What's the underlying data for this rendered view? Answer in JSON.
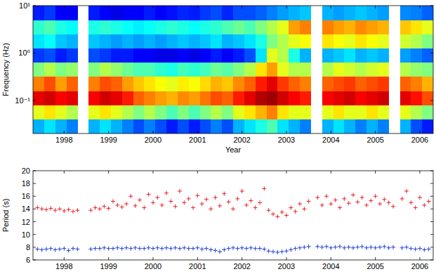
{
  "chart_data": [
    {
      "type": "heatmap",
      "x_label": "Year",
      "y_label": "Frequency (Hz)",
      "log": "y",
      "xlim": [
        1997.8,
        2006.8
      ],
      "ylim": [
        0.02,
        10
      ],
      "xticks": [
        {
          "value": 1998.5,
          "label": "1998"
        },
        {
          "value": 1999.5,
          "label": "1999"
        },
        {
          "value": 2000.5,
          "label": "2000"
        },
        {
          "value": 2001.5,
          "label": "2001"
        },
        {
          "value": 2002.5,
          "label": "2002"
        },
        {
          "value": 2003.5,
          "label": "2003"
        },
        {
          "value": 2004.5,
          "label": "2004"
        },
        {
          "value": 2005.5,
          "label": "2005"
        },
        {
          "value": 2006.5,
          "label": "2006"
        }
      ],
      "yticks": [
        {
          "value": 10,
          "label": "10¹"
        },
        {
          "value": 1,
          "label": "10⁰"
        },
        {
          "value": 0.1,
          "label": "10⁻¹"
        }
      ],
      "zlim": [
        0,
        1
      ],
      "x_edges": [
        1997.8,
        1998.05,
        1998.3,
        1998.55,
        1998.8,
        1999.05,
        1999.3,
        1999.55,
        1999.8,
        2000.05,
        2000.3,
        2000.55,
        2000.8,
        2001.05,
        2001.3,
        2001.55,
        2001.8,
        2002.05,
        2002.3,
        2002.55,
        2002.8,
        2003.05,
        2003.3,
        2003.55,
        2003.8,
        2004.05,
        2004.3,
        2004.55,
        2004.8,
        2005.05,
        2005.3,
        2005.55,
        2005.8,
        2006.05,
        2006.3,
        2006.55,
        2006.8
      ],
      "y_edges": [
        0.02,
        0.04,
        0.08,
        0.16,
        0.32,
        0.63,
        1.26,
        2.5,
        5,
        10
      ],
      "cells": [
        [
          0.3,
          0.35,
          0.3,
          0.25,
          null,
          0.3,
          0.35,
          0.3,
          0.25,
          0.2,
          0.25,
          0.2,
          0.15,
          0.2,
          0.15,
          0.2,
          0.25,
          0.2,
          0.3,
          0.35,
          0.4,
          0.45,
          0.35,
          0.3,
          0.25,
          null,
          0.3,
          0.35,
          0.3,
          0.25,
          0.3,
          0.25,
          null,
          0.3,
          0.2,
          0.15
        ],
        [
          0.6,
          0.65,
          0.6,
          0.55,
          null,
          0.6,
          0.65,
          0.6,
          0.55,
          0.5,
          0.55,
          0.5,
          0.45,
          0.5,
          0.45,
          0.5,
          0.55,
          0.5,
          0.6,
          0.65,
          0.7,
          0.75,
          0.65,
          0.6,
          0.6,
          null,
          0.6,
          0.65,
          0.6,
          0.6,
          0.65,
          0.6,
          null,
          0.6,
          0.55,
          0.5
        ],
        [
          0.9,
          0.92,
          0.88,
          0.9,
          null,
          0.88,
          0.92,
          0.9,
          0.85,
          0.78,
          0.75,
          0.72,
          0.7,
          0.74,
          0.72,
          0.76,
          0.8,
          0.78,
          0.85,
          0.9,
          0.95,
          0.97,
          0.92,
          0.88,
          0.85,
          null,
          0.88,
          0.9,
          0.92,
          0.88,
          0.9,
          0.92,
          null,
          0.9,
          0.86,
          0.8
        ],
        [
          0.75,
          0.8,
          0.72,
          0.78,
          null,
          0.75,
          0.8,
          0.78,
          0.72,
          0.68,
          0.65,
          0.62,
          0.6,
          0.64,
          0.62,
          0.66,
          0.7,
          0.68,
          0.74,
          0.78,
          0.85,
          0.9,
          0.82,
          0.78,
          0.75,
          null,
          0.78,
          0.8,
          0.82,
          0.78,
          0.8,
          0.82,
          null,
          0.78,
          0.75,
          0.7
        ],
        [
          0.5,
          0.55,
          0.5,
          0.52,
          null,
          0.5,
          0.55,
          0.52,
          0.48,
          0.45,
          0.45,
          0.42,
          0.4,
          0.44,
          0.42,
          0.44,
          0.48,
          0.46,
          0.5,
          0.55,
          0.65,
          0.72,
          0.6,
          0.55,
          0.55,
          null,
          0.55,
          0.6,
          0.58,
          0.55,
          0.58,
          0.6,
          null,
          0.55,
          0.52,
          0.5
        ],
        [
          0.18,
          0.2,
          0.15,
          0.18,
          null,
          0.2,
          0.18,
          0.15,
          0.15,
          0.12,
          0.12,
          0.1,
          0.1,
          0.12,
          0.1,
          0.12,
          0.15,
          0.12,
          0.15,
          0.2,
          0.35,
          0.6,
          0.55,
          0.4,
          0.3,
          null,
          0.3,
          0.32,
          0.35,
          0.3,
          0.32,
          0.3,
          null,
          0.28,
          0.25,
          0.22
        ],
        [
          0.35,
          0.38,
          0.32,
          0.3,
          null,
          0.32,
          0.3,
          0.28,
          0.3,
          0.28,
          0.3,
          0.28,
          0.3,
          0.32,
          0.3,
          0.32,
          0.35,
          0.3,
          0.32,
          0.35,
          0.4,
          0.5,
          0.55,
          0.6,
          0.62,
          null,
          0.65,
          0.62,
          0.6,
          0.65,
          0.62,
          0.6,
          null,
          0.58,
          0.55,
          0.5
        ],
        [
          0.42,
          0.45,
          0.4,
          0.38,
          null,
          0.4,
          0.42,
          0.4,
          0.38,
          0.36,
          0.38,
          0.4,
          0.42,
          0.4,
          0.38,
          0.4,
          0.42,
          0.45,
          0.48,
          0.45,
          0.5,
          0.55,
          0.6,
          0.72,
          0.75,
          null,
          0.75,
          0.72,
          0.7,
          0.74,
          0.72,
          0.7,
          null,
          0.68,
          0.65,
          0.6
        ],
        [
          0.15,
          0.18,
          0.12,
          0.12,
          null,
          0.15,
          0.12,
          0.1,
          0.12,
          0.12,
          0.15,
          0.12,
          0.14,
          0.16,
          0.15,
          0.18,
          0.2,
          0.16,
          0.2,
          0.2,
          0.22,
          0.25,
          0.28,
          0.3,
          0.32,
          null,
          0.3,
          0.28,
          0.3,
          0.32,
          0.3,
          0.28,
          null,
          0.26,
          0.25,
          0.22
        ]
      ]
    },
    {
      "type": "scatter",
      "y_label": "Period (s)",
      "xlim": [
        1997.8,
        2006.8
      ],
      "ylim": [
        6,
        20
      ],
      "xticks": [
        {
          "value": 1998.5,
          "label": "1998"
        },
        {
          "value": 1999.5,
          "label": "1999"
        },
        {
          "value": 2000.5,
          "label": "2000"
        },
        {
          "value": 2001.5,
          "label": "2001"
        },
        {
          "value": 2002.5,
          "label": "2002"
        },
        {
          "value": 2003.5,
          "label": "2003"
        },
        {
          "value": 2004.5,
          "label": "2004"
        },
        {
          "value": 2005.5,
          "label": "2005"
        },
        {
          "value": 2006.5,
          "label": "2006"
        }
      ],
      "yticks": [
        6,
        8,
        10,
        12,
        14,
        16,
        18,
        20
      ],
      "x": [
        1997.9,
        1998.0,
        1998.1,
        1998.2,
        1998.3,
        1998.4,
        1998.5,
        1998.6,
        1998.7,
        1998.8,
        1998.9,
        1999.0,
        1999.1,
        1999.2,
        1999.3,
        1999.4,
        1999.5,
        1999.6,
        1999.7,
        1999.8,
        1999.9,
        2000.0,
        2000.1,
        2000.2,
        2000.3,
        2000.4,
        2000.5,
        2000.6,
        2000.7,
        2000.8,
        2000.9,
        2001.0,
        2001.1,
        2001.2,
        2001.3,
        2001.4,
        2001.5,
        2001.6,
        2001.7,
        2001.8,
        2001.9,
        2002.0,
        2002.1,
        2002.2,
        2002.3,
        2002.4,
        2002.5,
        2002.6,
        2002.7,
        2002.8,
        2002.9,
        2003.0,
        2003.1,
        2003.2,
        2003.3,
        2003.4,
        2003.5,
        2003.6,
        2003.7,
        2003.8,
        2003.9,
        2004.0,
        2004.1,
        2004.2,
        2004.3,
        2004.4,
        2004.5,
        2004.6,
        2004.7,
        2004.8,
        2004.9,
        2005.0,
        2005.1,
        2005.2,
        2005.3,
        2005.4,
        2005.5,
        2005.6,
        2005.7,
        2005.8,
        2005.9,
        2006.0,
        2006.1,
        2006.2,
        2006.3,
        2006.4,
        2006.5,
        2006.6,
        2006.7
      ],
      "series": [
        {
          "color": "#e8202a",
          "marker": "plus",
          "values": [
            14.2,
            14.0,
            13.9,
            14.1,
            13.8,
            14.0,
            13.7,
            13.9,
            13.6,
            13.8,
            null,
            null,
            13.8,
            14.2,
            14.0,
            14.4,
            14.1,
            15.2,
            14.6,
            14.3,
            14.8,
            16.0,
            14.5,
            15.4,
            14.2,
            16.3,
            15.0,
            15.8,
            14.6,
            16.5,
            15.2,
            14.4,
            16.8,
            15.0,
            15.6,
            14.2,
            16.1,
            14.8,
            15.5,
            14.0,
            15.8,
            14.5,
            16.4,
            15.1,
            14.0,
            15.6,
            16.8,
            14.6,
            15.3,
            14.2,
            15.0,
            17.2,
            13.8,
            13.2,
            12.8,
            13.5,
            13.0,
            14.2,
            13.6,
            14.8,
            14.0,
            15.2,
            null,
            15.8,
            14.6,
            16.0,
            14.8,
            15.4,
            14.2,
            15.6,
            14.9,
            16.2,
            15.1,
            15.8,
            14.6,
            15.3,
            16.0,
            14.8,
            15.5,
            15.0,
            14.4,
            null,
            15.6,
            16.8,
            15.0,
            14.2,
            15.8,
            14.6,
            15.2
          ]
        },
        {
          "color": "#1f3fd6",
          "marker": "plus",
          "values": [
            7.7,
            7.6,
            7.7,
            7.8,
            7.6,
            7.7,
            7.8,
            7.5,
            7.8,
            7.7,
            null,
            null,
            7.7,
            7.8,
            7.8,
            7.9,
            7.8,
            7.8,
            7.9,
            7.8,
            7.9,
            7.8,
            7.9,
            7.8,
            7.8,
            7.9,
            7.8,
            7.9,
            7.8,
            7.9,
            7.8,
            7.9,
            7.8,
            7.9,
            7.8,
            7.8,
            7.9,
            7.7,
            7.8,
            7.6,
            7.5,
            7.3,
            7.6,
            7.8,
            7.9,
            7.8,
            7.9,
            7.8,
            7.9,
            7.8,
            7.8,
            7.7,
            7.4,
            7.3,
            7.2,
            7.3,
            7.4,
            7.6,
            7.8,
            7.9,
            8.0,
            8.1,
            null,
            8.1,
            8.0,
            8.1,
            7.9,
            8.0,
            8.1,
            7.9,
            8.0,
            7.9,
            8.0,
            8.1,
            7.9,
            8.0,
            7.9,
            8.0,
            8.1,
            7.9,
            8.0,
            null,
            7.9,
            8.0,
            7.8,
            7.7,
            7.8,
            7.6,
            7.7
          ]
        }
      ]
    }
  ]
}
